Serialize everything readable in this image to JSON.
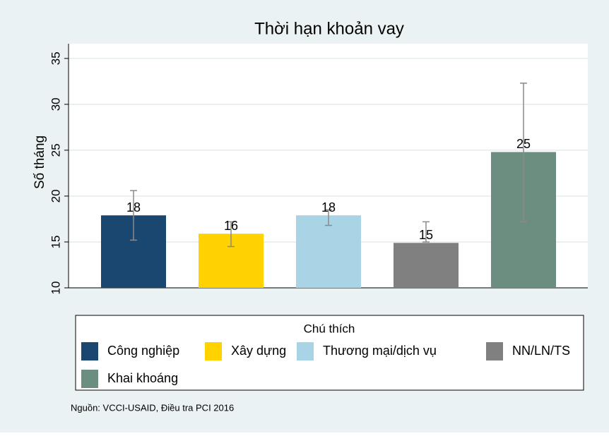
{
  "chart_data": {
    "type": "bar",
    "title": "Thời hạn khoản vay",
    "y_label": "Số tháng",
    "categories": [
      "Công nghiệp",
      "Xây dựng",
      "Thương mại/dịch vụ",
      "NN/LN/TS",
      "Khai khoáng"
    ],
    "values": [
      17.9,
      15.9,
      17.9,
      14.9,
      24.8
    ],
    "value_labels": [
      "18",
      "16",
      "18",
      "15",
      "25"
    ],
    "lower": [
      15.2,
      14.5,
      16.8,
      15.0,
      17.2
    ],
    "upper": [
      20.6,
      17.2,
      18.5,
      17.2,
      32.3
    ],
    "colors": [
      "#1a476f",
      "#ffd200",
      "#a8d4e6",
      "#808080",
      "#6b8e80"
    ],
    "ylim": [
      10,
      36.6
    ],
    "yticks": [
      10,
      15,
      20,
      25,
      30,
      35
    ],
    "grid": true,
    "legend_title": "Chú thích",
    "source": "Nguồn: VCCI-USAID, Điều tra PCI 2016"
  }
}
